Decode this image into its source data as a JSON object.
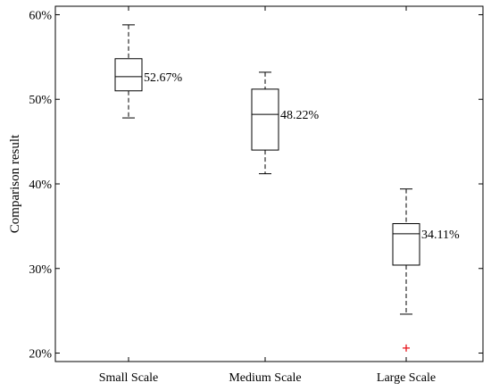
{
  "chart_data": {
    "type": "box",
    "ylabel": "Comparison result",
    "xlabel": "",
    "ylim": [
      19,
      61
    ],
    "yticks": [
      20,
      30,
      40,
      50,
      60
    ],
    "ytick_suffix": "%",
    "grid": false,
    "categories": [
      "Small Scale",
      "Medium Scale",
      "Large Scale"
    ],
    "boxes": [
      {
        "category": "Small Scale",
        "whisker_low": 47.8,
        "q1": 51.0,
        "median": 52.67,
        "q3": 54.8,
        "whisker_high": 58.8,
        "median_label": "52.67%",
        "outliers": []
      },
      {
        "category": "Medium Scale",
        "whisker_low": 41.2,
        "q1": 44.0,
        "median": 48.22,
        "q3": 51.2,
        "whisker_high": 53.2,
        "median_label": "48.22%",
        "outliers": []
      },
      {
        "category": "Large Scale",
        "whisker_low": 24.6,
        "q1": 30.4,
        "median": 34.11,
        "q3": 35.3,
        "whisker_high": 39.4,
        "median_label": "34.11%",
        "outliers": [
          20.6
        ]
      }
    ],
    "colors": {
      "box": "#000000",
      "outlier": "#e8141b"
    }
  }
}
